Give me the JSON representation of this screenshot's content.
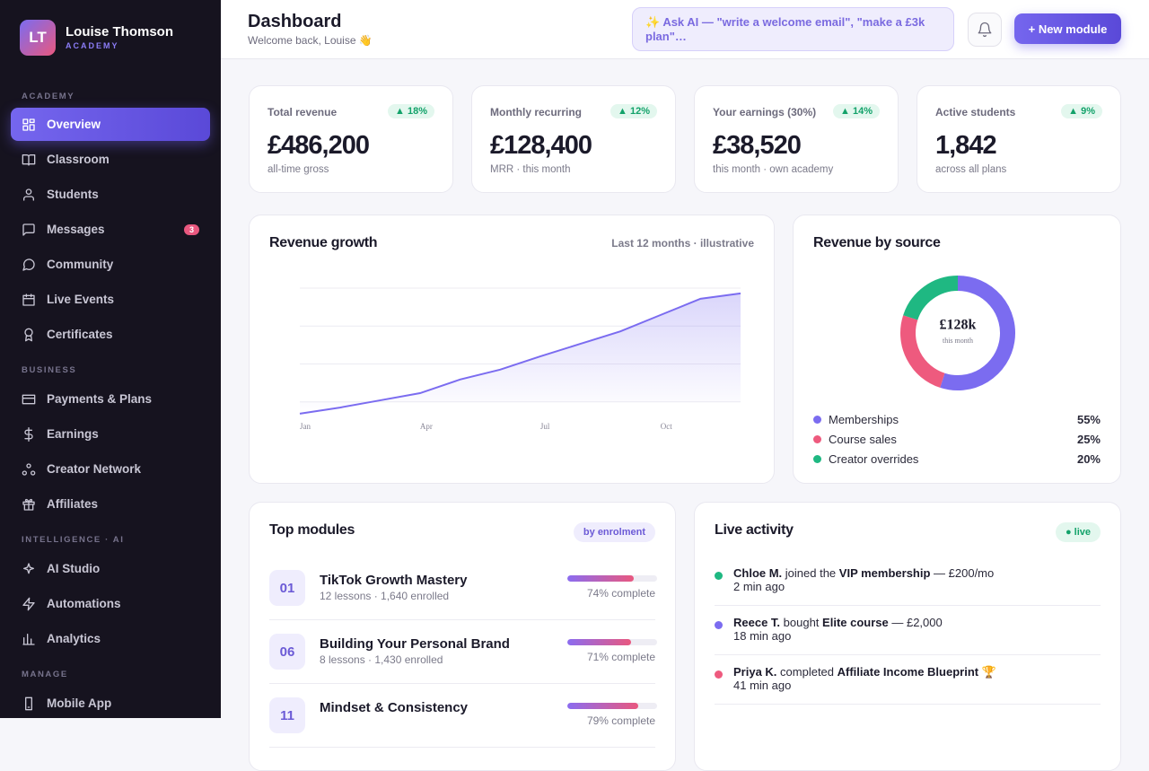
{
  "sidebar": {
    "initials": "LT",
    "name": "Louise Thomson",
    "subtitle": "ACADEMY",
    "sections": [
      {
        "title": "ACADEMY",
        "items": [
          {
            "label": "Overview",
            "active": true
          },
          {
            "label": "Classroom"
          },
          {
            "label": "Students"
          },
          {
            "label": "Messages",
            "badge": 3
          },
          {
            "label": "Community"
          },
          {
            "label": "Live Events"
          },
          {
            "label": "Certificates"
          }
        ]
      },
      {
        "title": "BUSINESS",
        "items": [
          {
            "label": "Payments & Plans"
          },
          {
            "label": "Earnings"
          },
          {
            "label": "Creator Network"
          },
          {
            "label": "Affiliates"
          }
        ]
      },
      {
        "title": "INTELLIGENCE · AI",
        "items": [
          {
            "label": "AI Studio"
          },
          {
            "label": "Automations"
          },
          {
            "label": "Analytics"
          }
        ]
      },
      {
        "title": "MANAGE",
        "items": [
          {
            "label": "Mobile App"
          }
        ]
      }
    ]
  },
  "header": {
    "title": "Dashboard",
    "subtitle": "Welcome back, Louise 👋",
    "ask": "✨ Ask AI — \"write a welcome email\", \"make a £3k plan\"…",
    "button": "+ New module"
  },
  "stats": [
    {
      "label": "Total revenue",
      "change": "▲ 18%",
      "value": "£486,200",
      "note": "all-time gross"
    },
    {
      "label": "Monthly recurring",
      "change": "▲ 12%",
      "value": "£128,400",
      "note": "MRR · this month"
    },
    {
      "label": "Your earnings (30%)",
      "change": "▲ 14%",
      "value": "£38,520",
      "note": "this month · own academy"
    },
    {
      "label": "Active students",
      "change": "▲ 9%",
      "value": "1,842",
      "note": "across all plans"
    }
  ],
  "chart_data": [
    {
      "type": "line",
      "title": "Revenue growth",
      "subtitle": "Last 12 months · illustrative",
      "categories": [
        "Jan",
        null,
        null,
        "Apr",
        null,
        null,
        "Jul",
        null,
        null,
        "Oct",
        null,
        null
      ],
      "series": [
        {
          "color": "#7b6cf0",
          "values": [
            0.69,
            0.85,
            1.04,
            1.23,
            1.59,
            1.85,
            2.2,
            2.53,
            2.86,
            3.29,
            3.72,
            3.86
          ]
        }
      ],
      "ylim": [
        0,
        4
      ],
      "yticks": [
        1,
        2,
        3,
        4
      ],
      "grid": true
    },
    {
      "type": "pie",
      "title": "Revenue by source",
      "center_label": "£128k",
      "center_sublabel": "this month",
      "categories": [
        "Memberships",
        "Course sales",
        "Creator overrides"
      ],
      "values": [
        55,
        25,
        20
      ],
      "value_labels": [
        "55%",
        "25%",
        "20%"
      ],
      "colors": [
        "#7b6cf0",
        "#ee5a7e",
        "#1fb882"
      ],
      "donut": true
    }
  ],
  "modules": {
    "title": "Top modules",
    "badge": "by enrolment",
    "rows": [
      {
        "number": "01",
        "title": "TikTok Growth Mastery",
        "meta": "12 lessons · 1,640 enrolled",
        "progress": 74,
        "progress_label": "74% complete"
      },
      {
        "number": "06",
        "title": "Building Your Personal Brand",
        "meta": "8 lessons · 1,430 enrolled",
        "progress": 71,
        "progress_label": "71% complete"
      },
      {
        "number": "11",
        "title": "Mindset & Consistency",
        "progress": 79,
        "progress_label": "79% complete"
      }
    ]
  },
  "activity": {
    "title": "Live activity",
    "badge": "● live",
    "items": [
      {
        "who": "Chloe M.",
        "action": " joined the ",
        "target": "VIP membership",
        "extra": " — £200/mo",
        "time": "2 min ago",
        "color": "#1fb882"
      },
      {
        "who": "Reece T.",
        "action": " bought ",
        "target": "Elite course",
        "extra": " — £2,000",
        "time": "18 min ago",
        "color": "#7b6cf0"
      },
      {
        "who": "Priya K.",
        "action": " completed ",
        "target": "Affiliate Income Blueprint 🏆",
        "time": "41 min ago",
        "color": "#ee5a7e"
      }
    ]
  }
}
